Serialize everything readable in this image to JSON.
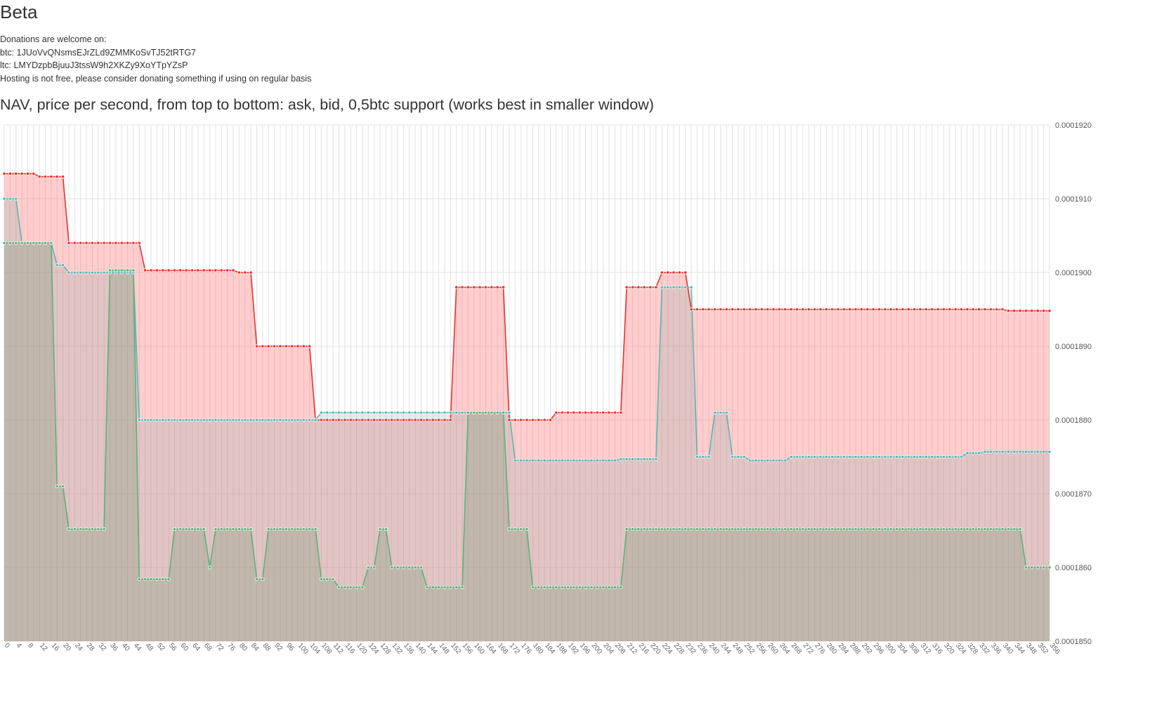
{
  "header": {
    "title": "Beta"
  },
  "donations": {
    "intro": "Donations are welcome on:",
    "btc": "btc: 1JUoVvQNsmsEJrZLd9ZMMKoSvTJ52tRTG7",
    "ltc": "ltc: LMYDzpbBjuuJ3tssW9h2XKZy9XoYTpYZsP",
    "note": "Hosting is not free, please consider donating something if using on regular basis"
  },
  "colors": {
    "ask": "#e8322e",
    "bid": "#56b8b4",
    "support": "#5ab27a",
    "ask_fill": "rgba(255,100,100,0.32)",
    "bid_fill": "rgba(110,160,160,0.20)",
    "support_fill": "rgba(110,150,110,0.28)",
    "grid": "#e2e2e2"
  },
  "chart_data": {
    "type": "area",
    "title": "NAV, price per second, from top to bottom: ask, bid, 0,5btc support (works best in smaller window)",
    "xlabel": "",
    "ylabel": "",
    "ylim": [
      0.000185,
      0.000192
    ],
    "yticks": [
      "0.0001850",
      "0.0001860",
      "0.0001870",
      "0.0001880",
      "0.0001890",
      "0.0001900",
      "0.0001910",
      "0.0001920"
    ],
    "y_axis_position": "right",
    "grid": true,
    "x_count": 179,
    "x_label_step": 2,
    "series": [
      {
        "key": "ask",
        "segments": [
          [
            0,
            0.00019134
          ],
          [
            8,
            0.00019134
          ],
          [
            9,
            0.0001913
          ],
          [
            15,
            0.0001913
          ],
          [
            16,
            0.0001904
          ],
          [
            32,
            0.0001904
          ],
          [
            33,
            0.00019003
          ],
          [
            55,
            0.00019003
          ],
          [
            56,
            0.00019
          ],
          [
            59,
            0.00019
          ],
          [
            60,
            0.000189
          ],
          [
            73,
            0.000189
          ],
          [
            74,
            0.000188
          ],
          [
            107,
            0.000188
          ],
          [
            108,
            0.0001898
          ],
          [
            120,
            0.0001898
          ],
          [
            121,
            0.000188
          ],
          [
            131,
            0.000188
          ],
          [
            132,
            0.0001881
          ],
          [
            147,
            0.0001881
          ],
          [
            148,
            0.0001898
          ],
          [
            155,
            0.0001898
          ],
          [
            156,
            0.00019
          ],
          [
            162,
            0.00019
          ],
          [
            163,
            0.0001895
          ],
          [
            238,
            0.0001895
          ],
          [
            239,
            0.00018948
          ],
          [
            249,
            0.00018948
          ]
        ]
      },
      {
        "key": "bid",
        "segments": [
          [
            0,
            0.000191
          ],
          [
            3,
            0.000191
          ],
          [
            4,
            0.0001904
          ],
          [
            11,
            0.0001904
          ],
          [
            12,
            0.0001901
          ],
          [
            15,
            0.0001901
          ],
          [
            16,
            0.00019
          ],
          [
            23,
            0.00019
          ],
          [
            24,
            0.00019
          ],
          [
            31,
            0.00019
          ],
          [
            32,
            0.000188
          ],
          [
            74,
            0.000188
          ],
          [
            75,
            0.0001881
          ],
          [
            107,
            0.0001881
          ],
          [
            108,
            0.0001881
          ],
          [
            119,
            0.0001881
          ],
          [
            120,
            0.0001881
          ],
          [
            121,
            0.0001881
          ],
          [
            122,
            0.00018745
          ],
          [
            146,
            0.00018745
          ],
          [
            147,
            0.00018747
          ],
          [
            155,
            0.00018747
          ],
          [
            156,
            0.0001898
          ],
          [
            164,
            0.0001898
          ],
          [
            165,
            0.0001875
          ],
          [
            168,
            0.0001875
          ],
          [
            169,
            0.0001881
          ],
          [
            172,
            0.0001881
          ],
          [
            173,
            0.0001875
          ],
          [
            177,
            0.0001875
          ],
          [
            178,
            0.00018745
          ],
          [
            186,
            0.00018745
          ],
          [
            187,
            0.0001875
          ],
          [
            228,
            0.0001875
          ],
          [
            229,
            0.00018755
          ],
          [
            232,
            0.00018755
          ],
          [
            233,
            0.00018757
          ],
          [
            249,
            0.00018757
          ]
        ]
      },
      {
        "key": "support",
        "segments": [
          [
            0,
            0.0001904
          ],
          [
            11,
            0.0001904
          ],
          [
            12,
            0.0001871
          ],
          [
            15,
            0.0001871
          ],
          [
            16,
            0.00018652
          ],
          [
            24,
            0.00018652
          ],
          [
            25,
            0.00019003
          ],
          [
            31,
            0.00019003
          ],
          [
            32,
            0.00018584
          ],
          [
            40,
            0.00018584
          ],
          [
            41,
            0.00018652
          ],
          [
            48,
            0.00018652
          ],
          [
            49,
            0.000186
          ],
          [
            50,
            0.000186
          ],
          [
            51,
            0.00018652
          ],
          [
            59,
            0.00018652
          ],
          [
            60,
            0.00018584
          ],
          [
            62,
            0.00018584
          ],
          [
            63,
            0.00018652
          ],
          [
            75,
            0.00018652
          ],
          [
            76,
            0.00018584
          ],
          [
            79,
            0.00018584
          ],
          [
            80,
            0.00018573
          ],
          [
            86,
            0.00018573
          ],
          [
            87,
            0.000186
          ],
          [
            89,
            0.000186
          ],
          [
            90,
            0.00018652
          ],
          [
            92,
            0.00018652
          ],
          [
            93,
            0.000186
          ],
          [
            100,
            0.000186
          ],
          [
            101,
            0.00018573
          ],
          [
            109,
            0.00018573
          ],
          [
            110,
            0.0001881
          ],
          [
            120,
            0.0001881
          ],
          [
            121,
            0.00018652
          ],
          [
            125,
            0.00018652
          ],
          [
            126,
            0.00018573
          ],
          [
            147,
            0.00018573
          ],
          [
            148,
            0.00018652
          ],
          [
            243,
            0.00018652
          ],
          [
            244,
            0.000186
          ],
          [
            249,
            0.000186
          ]
        ]
      }
    ]
  }
}
